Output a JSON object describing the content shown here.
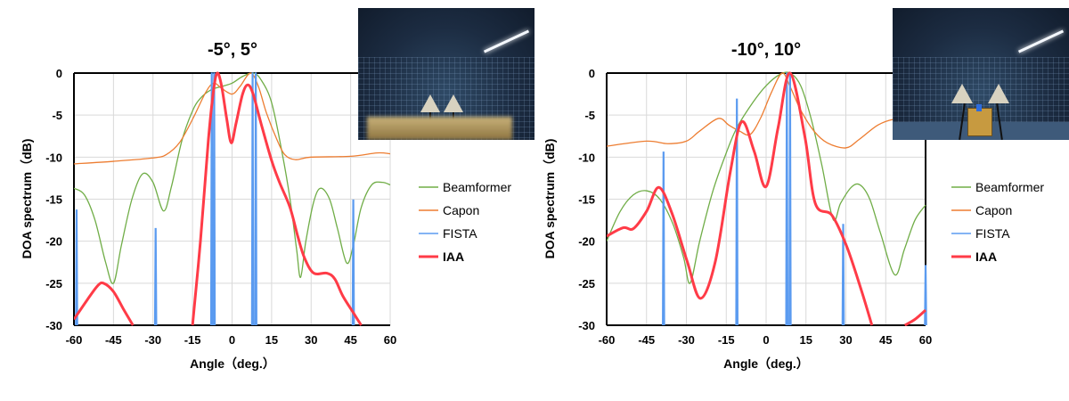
{
  "legend": {
    "items": [
      {
        "label": "Beamformer",
        "color": "#70ad47",
        "bold": false
      },
      {
        "label": "Capon",
        "color": "#ed7d31",
        "bold": false
      },
      {
        "label": "FISTA",
        "color": "#5b9bf0",
        "bold": false
      },
      {
        "label": "IAA",
        "color": "#ff3b47",
        "bold": true
      }
    ]
  },
  "chart_data": [
    {
      "type": "line",
      "title": "-5°, 5°",
      "xlabel": "Angle（deg.）",
      "ylabel": "DOA spectrum（dB)",
      "xlim": [
        -60,
        60
      ],
      "ylim": [
        -30,
        0
      ],
      "xticks": [
        "-60",
        "-45",
        "-30",
        "-15",
        "0",
        "15",
        "30",
        "45",
        "60"
      ],
      "yticks": [
        "0",
        "-5",
        "-10",
        "-15",
        "-20",
        "-25",
        "-30"
      ],
      "grid": true,
      "legend_position": "right",
      "inset_photo": "anechoic chamber with two horn antennas",
      "series": [
        {
          "name": "Beamformer",
          "points": [
            [
              -60,
              -13.7
            ],
            [
              -56,
              -14.5
            ],
            [
              -52,
              -17.5
            ],
            [
              -48,
              -22.5
            ],
            [
              -45,
              -25
            ],
            [
              -42,
              -20.5
            ],
            [
              -38,
              -15
            ],
            [
              -34,
              -12
            ],
            [
              -30,
              -13
            ],
            [
              -26,
              -16.4
            ],
            [
              -23,
              -13.5
            ],
            [
              -19,
              -8
            ],
            [
              -15,
              -4.5
            ],
            [
              -12,
              -3
            ],
            [
              -8,
              -2
            ],
            [
              -4,
              -1.6
            ],
            [
              0,
              -1.2
            ],
            [
              4,
              -0.4
            ],
            [
              8,
              0
            ],
            [
              11,
              -0.8
            ],
            [
              15,
              -3.5
            ],
            [
              19,
              -9.5
            ],
            [
              22,
              -15
            ],
            [
              24.5,
              -21
            ],
            [
              26,
              -24.3
            ],
            [
              28,
              -20
            ],
            [
              31,
              -15.3
            ],
            [
              33.6,
              -13.7
            ],
            [
              37,
              -15
            ],
            [
              40,
              -18.5
            ],
            [
              43.5,
              -22.6
            ],
            [
              46,
              -20.5
            ],
            [
              49,
              -16
            ],
            [
              53,
              -13.3
            ],
            [
              57,
              -13
            ],
            [
              60,
              -13.3
            ]
          ]
        },
        {
          "name": "Capon",
          "points": [
            [
              -60,
              -10.8
            ],
            [
              -45,
              -10.5
            ],
            [
              -30,
              -10.1
            ],
            [
              -25,
              -9.7
            ],
            [
              -20,
              -8.3
            ],
            [
              -15,
              -5.5
            ],
            [
              -10,
              -2.3
            ],
            [
              -7,
              -1.2
            ],
            [
              -4,
              -1.8
            ],
            [
              0,
              -2.5
            ],
            [
              3,
              -1.6
            ],
            [
              7,
              0
            ],
            [
              10,
              -1.6
            ],
            [
              13,
              -4.7
            ],
            [
              17,
              -7.9
            ],
            [
              20,
              -9.7
            ],
            [
              24,
              -10.3
            ],
            [
              30,
              -10
            ],
            [
              45,
              -9.9
            ],
            [
              55,
              -9.5
            ],
            [
              60,
              -9.6
            ]
          ]
        },
        {
          "name": "FISTA",
          "peaks": [
            [
              -59,
              -16.3
            ],
            [
              -29,
              -18.5
            ],
            [
              -7.7,
              0
            ],
            [
              -6.8,
              0
            ],
            [
              7.8,
              0
            ],
            [
              9,
              0
            ],
            [
              46,
              -15.1
            ]
          ]
        },
        {
          "name": "IAA",
          "segments": [
            [
              [
                -60,
                -29.3
              ],
              [
                -55,
                -27
              ],
              [
                -51,
                -25.3
              ],
              [
                -48.8,
                -25
              ],
              [
                -45,
                -26
              ],
              [
                -41,
                -28.2
              ],
              [
                -37.6,
                -30
              ]
            ],
            [
              [
                -15,
                -30
              ],
              [
                -12,
                -20
              ],
              [
                -9,
                -8
              ],
              [
                -7,
                -2
              ],
              [
                -5.6,
                0
              ],
              [
                -4,
                -1.5
              ],
              [
                -2,
                -5.5
              ],
              [
                -0.3,
                -8.3
              ],
              [
                1.5,
                -6
              ],
              [
                4,
                -2.5
              ],
              [
                6,
                -1.4
              ],
              [
                8,
                -2.5
              ],
              [
                11,
                -6
              ],
              [
                15,
                -10.4
              ],
              [
                18,
                -13
              ],
              [
                22,
                -16
              ],
              [
                25,
                -19.5
              ],
              [
                27.5,
                -22
              ],
              [
                31,
                -23.8
              ],
              [
                36,
                -23.8
              ],
              [
                39,
                -24.5
              ],
              [
                42,
                -26.5
              ],
              [
                46,
                -28.5
              ],
              [
                49,
                -30
              ]
            ]
          ]
        }
      ]
    },
    {
      "type": "line",
      "title": "-10°, 10°",
      "xlabel": "Angle（deg.）",
      "ylabel": "DOA spectrum（dB)",
      "xlim": [
        -60,
        60
      ],
      "ylim": [
        -30,
        0
      ],
      "xticks": [
        "-60",
        "-45",
        "-30",
        "-15",
        "0",
        "15",
        "30",
        "45",
        "60"
      ],
      "yticks": [
        "0",
        "-5",
        "-10",
        "-15",
        "-20",
        "-25",
        "-30"
      ],
      "grid": true,
      "legend_position": "right",
      "inset_photo": "anechoic chamber with two horn antennas and receiver",
      "series": [
        {
          "name": "Beamformer",
          "points": [
            [
              -60,
              -20
            ],
            [
              -55,
              -16.5
            ],
            [
              -50,
              -14.5
            ],
            [
              -45,
              -14
            ],
            [
              -40,
              -15
            ],
            [
              -35,
              -18
            ],
            [
              -31,
              -22
            ],
            [
              -28.6,
              -25
            ],
            [
              -25,
              -20
            ],
            [
              -20,
              -14
            ],
            [
              -15,
              -9.5
            ],
            [
              -11,
              -6.5
            ],
            [
              -5,
              -3.5
            ],
            [
              0,
              -1.5
            ],
            [
              5,
              -0.2
            ],
            [
              9,
              0
            ],
            [
              13,
              -1.5
            ],
            [
              17,
              -5.5
            ],
            [
              21,
              -11
            ],
            [
              25.2,
              -17.4
            ],
            [
              28,
              -15.5
            ],
            [
              32,
              -13.6
            ],
            [
              35.3,
              -13.3
            ],
            [
              39,
              -15
            ],
            [
              43,
              -19
            ],
            [
              48.4,
              -24
            ],
            [
              52,
              -21
            ],
            [
              56,
              -17.5
            ],
            [
              60,
              -15.7
            ]
          ]
        },
        {
          "name": "Capon",
          "points": [
            [
              -60,
              -8.7
            ],
            [
              -45,
              -8.1
            ],
            [
              -37,
              -8.4
            ],
            [
              -30,
              -8.1
            ],
            [
              -25,
              -6.9
            ],
            [
              -18,
              -5.4
            ],
            [
              -14,
              -6.2
            ],
            [
              -10,
              -6.9
            ],
            [
              -6,
              -7.3
            ],
            [
              -2,
              -5.3
            ],
            [
              2,
              -2.3
            ],
            [
              6,
              0
            ],
            [
              9,
              -1.6
            ],
            [
              13,
              -4.4
            ],
            [
              18,
              -6.9
            ],
            [
              23,
              -8.3
            ],
            [
              30,
              -8.9
            ],
            [
              35,
              -7.9
            ],
            [
              42,
              -6.2
            ],
            [
              48,
              -5.5
            ],
            [
              55,
              -5.4
            ],
            [
              60,
              -5.5
            ]
          ]
        },
        {
          "name": "FISTA",
          "peaks": [
            [
              -38.6,
              -9.4
            ],
            [
              -11,
              -3.1
            ],
            [
              7.8,
              0
            ],
            [
              9,
              0
            ],
            [
              29,
              -18
            ],
            [
              60,
              -22.9
            ]
          ]
        },
        {
          "name": "IAA",
          "segments": [
            [
              [
                -60,
                -19.4
              ],
              [
                -53.8,
                -18.4
              ],
              [
                -49.9,
                -18.5
              ],
              [
                -44.9,
                -16.4
              ],
              [
                -40.4,
                -13.6
              ],
              [
                -35.4,
                -16.7
              ],
              [
                -29.7,
                -22.4
              ],
              [
                -24.7,
                -26.8
              ],
              [
                -19.1,
                -22.4
              ],
              [
                -13.5,
                -11.8
              ],
              [
                -9.2,
                -5.8
              ],
              [
                -4.5,
                -9.3
              ],
              [
                0,
                -13.5
              ],
              [
                4.5,
                -6.5
              ],
              [
                9,
                0
              ],
              [
                14.6,
                -7.6
              ],
              [
                18.5,
                -15.5
              ],
              [
                24.7,
                -16.9
              ],
              [
                30.3,
                -20.6
              ],
              [
                35.9,
                -25.9
              ],
              [
                39.8,
                -30
              ]
            ],
            [
              [
                52.2,
                -30
              ],
              [
                56,
                -29.3
              ],
              [
                60,
                -28.2
              ]
            ]
          ]
        }
      ]
    }
  ]
}
